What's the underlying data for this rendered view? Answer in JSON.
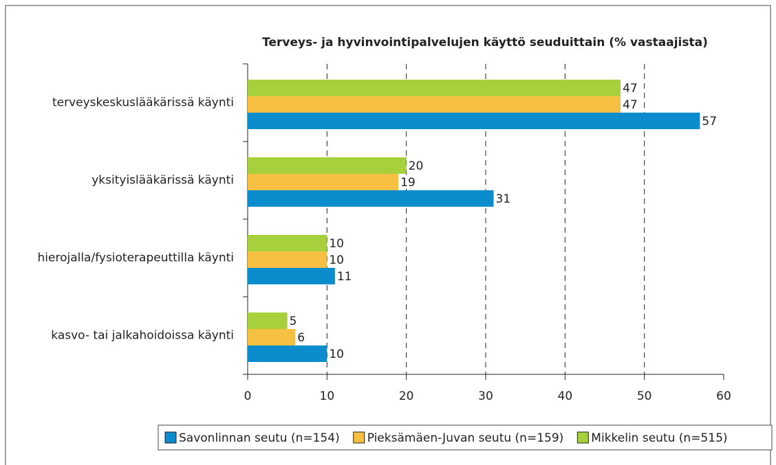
{
  "chart_data": {
    "type": "bar",
    "orientation": "horizontal",
    "title": "Terveys- ja hyvinvointipalvelujen käyttö seuduittain (% vastaajista)",
    "categories": [
      "terveyskeskuslääkärissä käynti",
      "yksityislääkärissä käynti",
      "hierojalla/fysioterapeuttilla käynti",
      "kasvo- tai jalkahoidoissa käynti"
    ],
    "series": [
      {
        "name": "Savonlinnan seutu (n=154)",
        "color": "#0a8ccd",
        "values": [
          57,
          31,
          11,
          10
        ]
      },
      {
        "name": "Pieksämäen-Juvan seutu (n=159)",
        "color": "#f7c042",
        "values": [
          47,
          19,
          10,
          6
        ]
      },
      {
        "name": "Mikkelin seutu (n=515)",
        "color": "#a6d13c",
        "values": [
          47,
          20,
          10,
          5
        ]
      }
    ],
    "xlim": [
      0,
      60
    ],
    "xticks": [
      0,
      10,
      20,
      30,
      40,
      50,
      60
    ],
    "grid": true,
    "legend": "bottom"
  }
}
